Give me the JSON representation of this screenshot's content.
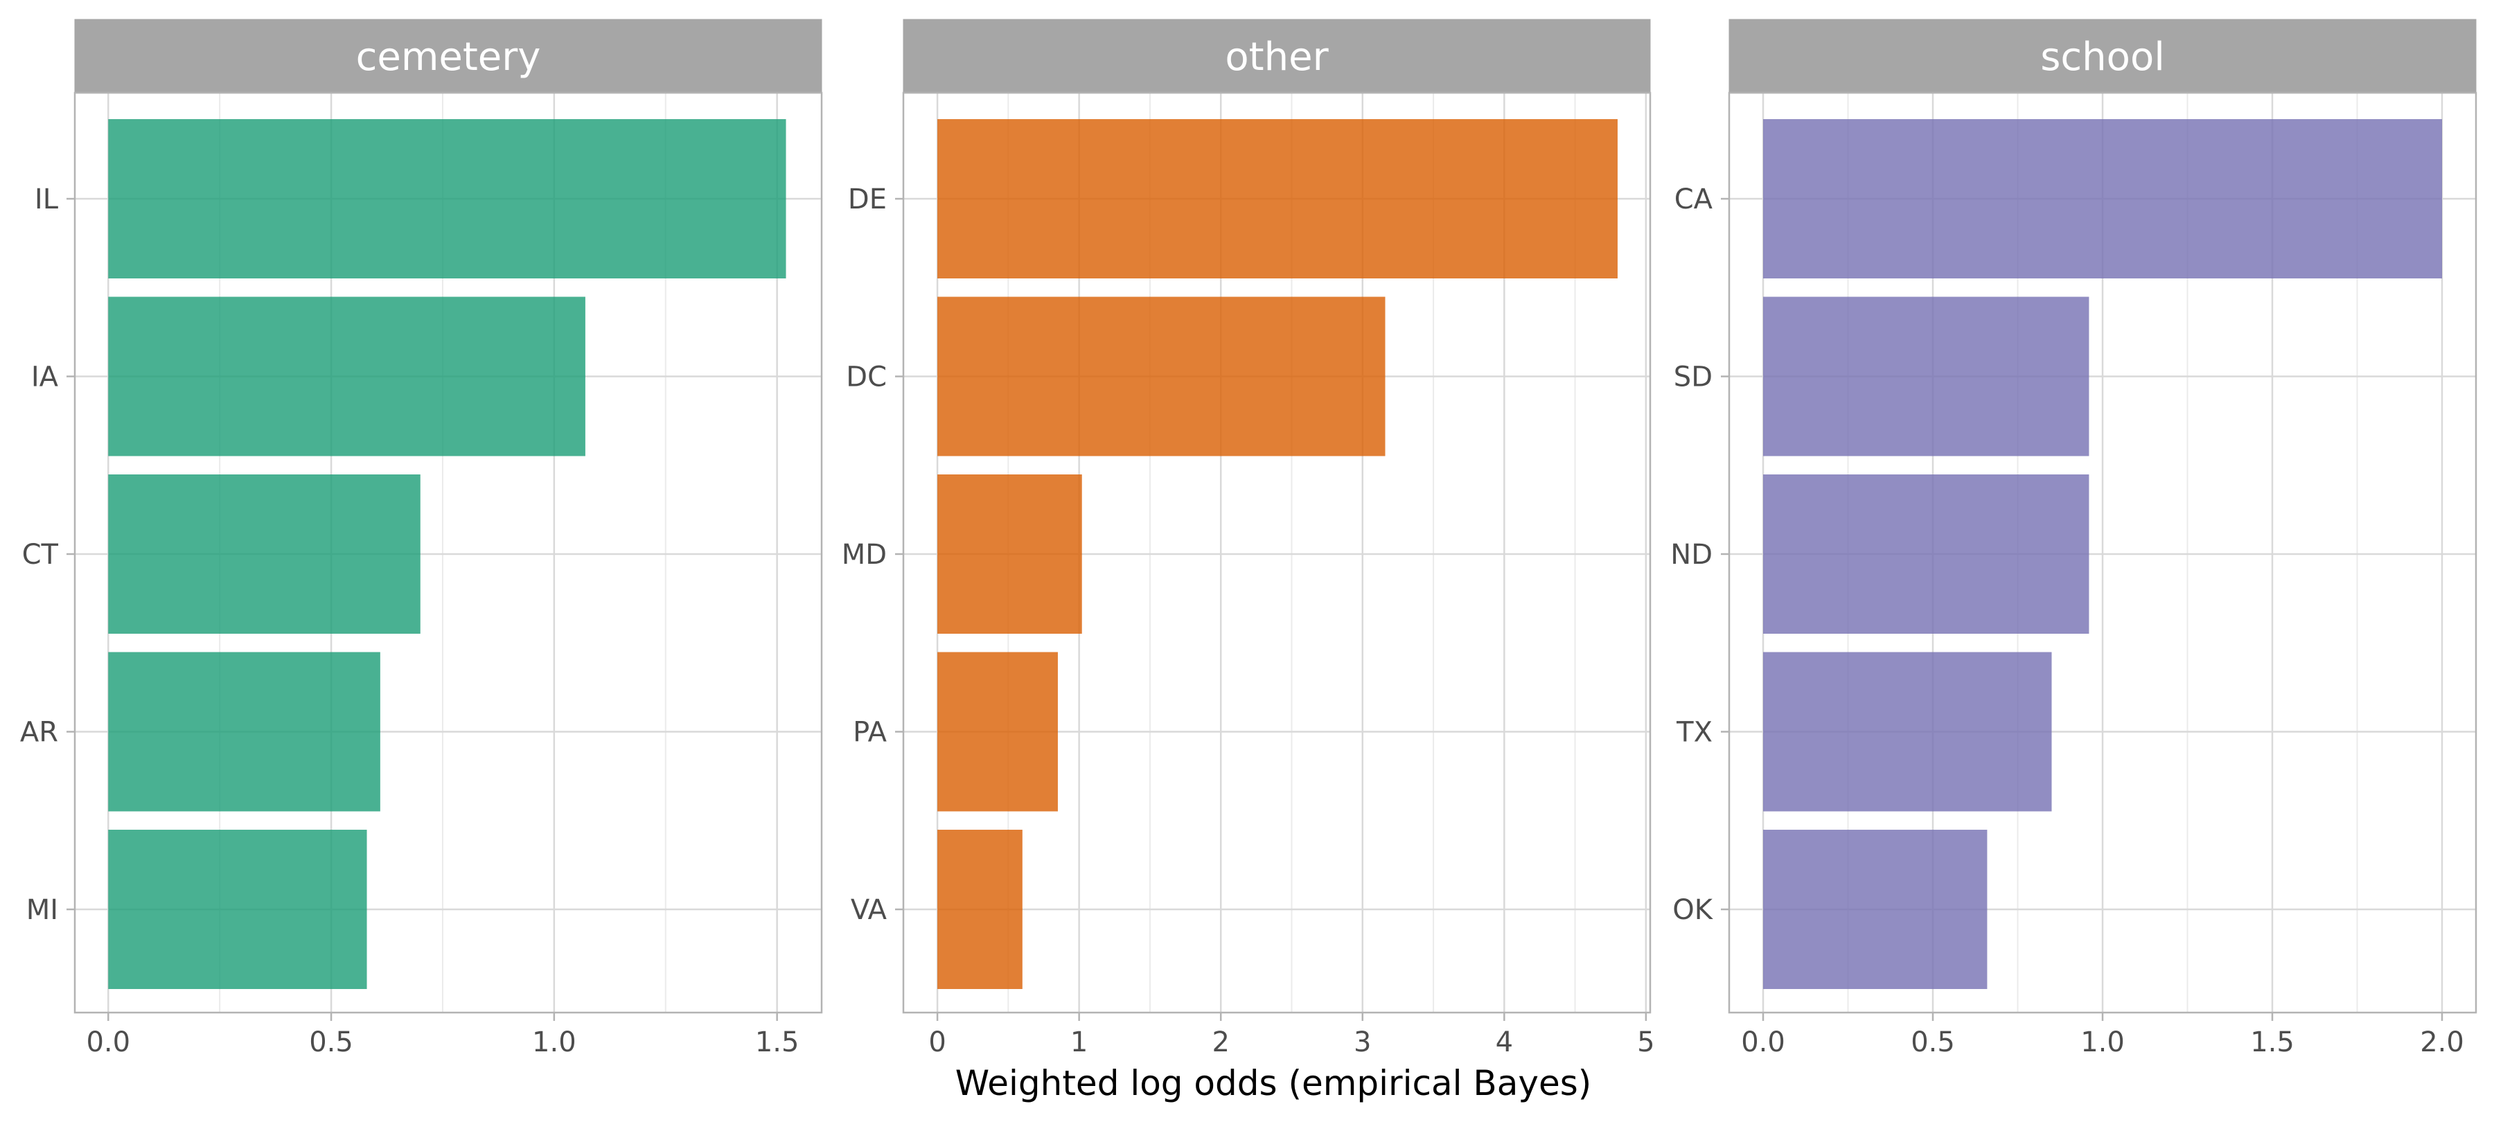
{
  "chart_data": {
    "type": "bar",
    "orientation": "horizontal",
    "xlabel": "Weighted log odds (empirical Bayes)",
    "ylabel": "",
    "grid": true,
    "facets": [
      {
        "title": "cemetery",
        "color": "#1b9e77",
        "categories": [
          "IL",
          "IA",
          "CT",
          "AR",
          "MI"
        ],
        "values": [
          1.52,
          1.07,
          0.7,
          0.61,
          0.58
        ],
        "xlim": [
          -0.075,
          1.6
        ],
        "ticks": [
          0,
          0.5,
          1.0,
          1.5
        ],
        "tick_labels": [
          "0.0",
          "0.5",
          "1.0",
          "1.5"
        ]
      },
      {
        "title": "other",
        "color": "#d95f02",
        "categories": [
          "DE",
          "DC",
          "MD",
          "PA",
          "VA"
        ],
        "values": [
          4.8,
          3.16,
          1.02,
          0.85,
          0.6
        ],
        "xlim": [
          -0.24,
          5.03
        ],
        "ticks": [
          0,
          1,
          2,
          3,
          4,
          5
        ],
        "tick_labels": [
          "0",
          "1",
          "2",
          "3",
          "4",
          "5"
        ]
      },
      {
        "title": "school",
        "color": "#7570b3",
        "categories": [
          "CA",
          "SD",
          "ND",
          "TX",
          "OK"
        ],
        "values": [
          2.0,
          0.96,
          0.96,
          0.85,
          0.66
        ],
        "xlim": [
          -0.1,
          2.1
        ],
        "ticks": [
          0,
          0.5,
          1.0,
          1.5,
          2.0
        ],
        "tick_labels": [
          "0.0",
          "0.5",
          "1.0",
          "1.5",
          "2.0"
        ]
      }
    ]
  }
}
